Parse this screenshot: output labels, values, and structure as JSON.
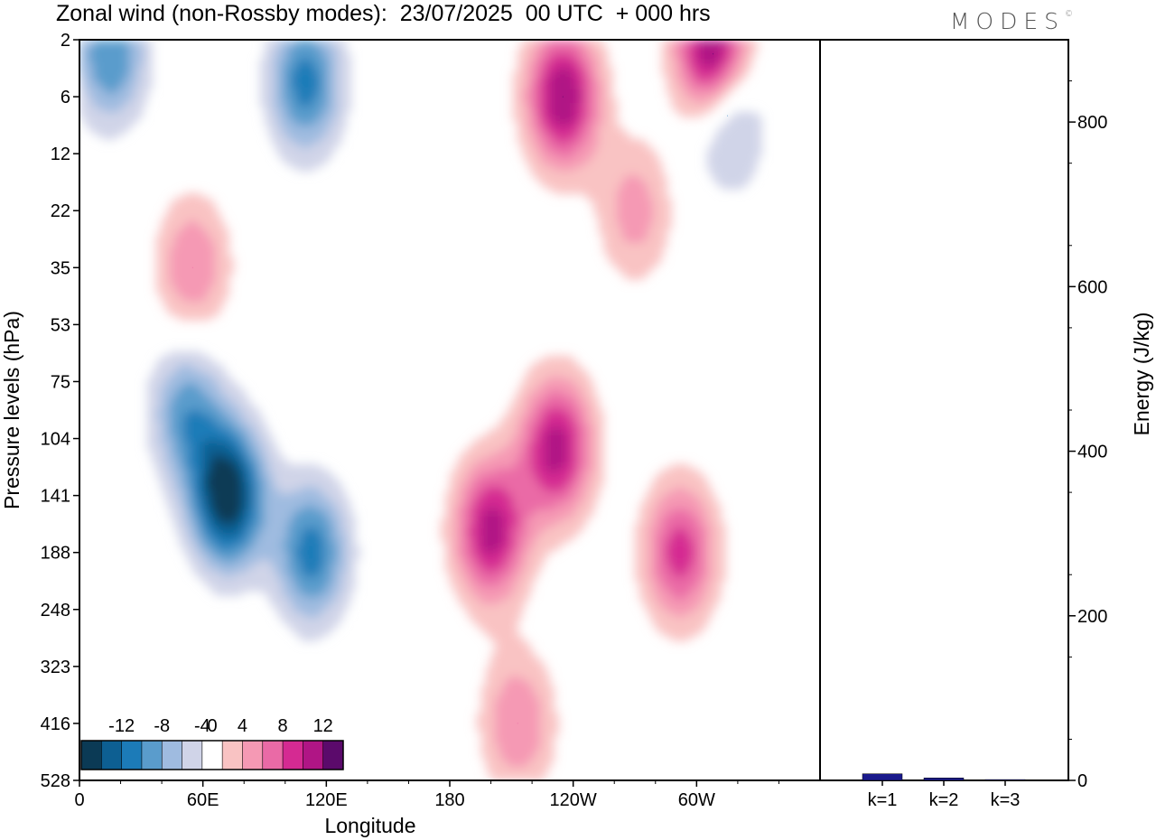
{
  "header": {
    "title": "Zonal wind (non-Rossby modes):  23/07/2025  00 UTC  + 000 hrs",
    "brand": "MODES",
    "brand_mark": "©"
  },
  "chart_data": [
    {
      "type": "heatmap",
      "title": "Zonal wind (non-Rossby modes):  23/07/2025  00 UTC  + 000 hrs",
      "xlabel": "Longitude",
      "ylabel": "Pressure levels (hPa)",
      "x_ticks": [
        "0",
        "60E",
        "120E",
        "180",
        "120W",
        "60W"
      ],
      "y_ticks": [
        "2",
        "6",
        "12",
        "22",
        "35",
        "53",
        "75",
        "104",
        "141",
        "188",
        "248",
        "323",
        "416",
        "528"
      ],
      "colorbar": {
        "labels": [
          "-12",
          "-8",
          "-4",
          "0",
          "4",
          "8",
          "12"
        ],
        "levels": [
          -14,
          -12,
          -10,
          -8,
          -6,
          -4,
          -2,
          2,
          4,
          6,
          8,
          10,
          12,
          14
        ],
        "colors": [
          "#0b3a55",
          "#0d5f92",
          "#1c7bb8",
          "#5a9ccc",
          "#9fbbe0",
          "#d0d4e8",
          "#ffffff",
          "#f9c3c3",
          "#f599b4",
          "#ea6aa6",
          "#d52a92",
          "#b01585",
          "#5b0a6b"
        ],
        "position": "bottom-left"
      },
      "features": [
        {
          "name": "easterly core",
          "lon": 72,
          "level": 141,
          "value": -14
        },
        {
          "name": "easterly secondary",
          "lon": 113,
          "level": 188,
          "value": -9
        },
        {
          "name": "easterly upper",
          "lon": 52,
          "level": 90,
          "value": -7
        },
        {
          "name": "westerly column",
          "lon": 200,
          "level": 170,
          "value": 11
        },
        {
          "name": "westerly column tilted",
          "lon": 232,
          "level": 110,
          "value": 11
        },
        {
          "name": "westerly lower",
          "lon": 213,
          "level": 416,
          "value": 6
        },
        {
          "name": "westerly upper-right",
          "lon": 292,
          "level": 188,
          "value": 9
        },
        {
          "name": "westerly jet upper",
          "lon": 235,
          "level": 6,
          "value": 12
        },
        {
          "name": "westerly jet top",
          "lon": 308,
          "level": 3,
          "value": 14
        },
        {
          "name": "easterly stratospheric left",
          "lon": 15,
          "level": 3,
          "value": -8
        },
        {
          "name": "easterly stratospheric mid",
          "lon": 110,
          "level": 5,
          "value": -9
        },
        {
          "name": "easterly stratospheric right",
          "lon": 315,
          "level": 8,
          "value": -7
        },
        {
          "name": "westerly mid-left",
          "lon": 55,
          "level": 35,
          "value": 6
        },
        {
          "name": "westerly mid-right",
          "lon": 270,
          "level": 22,
          "value": 5
        }
      ]
    },
    {
      "type": "bar",
      "categories": [
        "k=1",
        "k=2",
        "k=3"
      ],
      "values": [
        8,
        3,
        1
      ],
      "ylabel": "Energy (J/kg)",
      "ylim": [
        0,
        900
      ],
      "y_ticks": [
        "0",
        "200",
        "400",
        "600",
        "800"
      ],
      "color": "#1a1a8c"
    }
  ]
}
